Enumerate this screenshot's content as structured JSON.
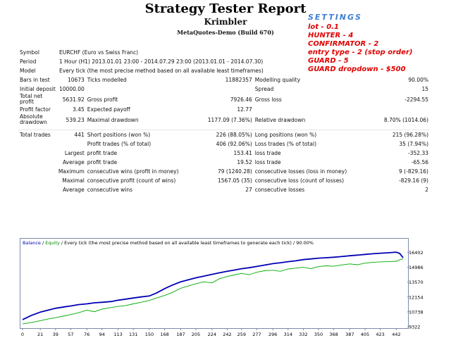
{
  "header": {
    "title": "Strategy Tester Report",
    "subtitle": "Krimbler",
    "company": "MetaQuotes-Demo (Build 670)"
  },
  "settings": {
    "heading": "SETTINGS",
    "lines": [
      "lot - 0.1",
      "HUNTER - 4",
      "CONFIRMATOR - 2",
      "entry type - 2 (stop order)",
      "GUARD - 5",
      "GUARD dropdown - $500"
    ]
  },
  "report": {
    "symbol_label": "Symbol",
    "symbol_value": "EURCHF (Euro vs Swiss Franc)",
    "period_label": "Period",
    "period_value": "1 Hour (H1) 2013.01.01 23:00 - 2014.07.29 23:00 (2013.01.01 - 2014.07.30)",
    "model_label": "Model",
    "model_value": "Every tick (the most precise method based on all available least timeframes)",
    "bars_label": "Bars in test",
    "bars_value": "10673",
    "ticks_label": "Ticks modelled",
    "ticks_value": "11882357",
    "quality_label": "Modelling quality",
    "quality_value": "90.00%",
    "deposit_label": "Initial deposit",
    "deposit_value": "10000.00",
    "spread_label": "Spread",
    "spread_value": "15",
    "netprofit_label": "Total net profit",
    "netprofit_value": "5631.92",
    "grossprofit_label": "Gross profit",
    "grossprofit_value": "7926.46",
    "grossloss_label": "Gross loss",
    "grossloss_value": "-2294.55",
    "pf_label": "Profit factor",
    "pf_value": "3.45",
    "payoff_label": "Expected payoff",
    "payoff_value": "12.77",
    "absdd_label": "Absolute drawdown",
    "absdd_value": "539.23",
    "maxdd_label": "Maximal drawdown",
    "maxdd_value": "1177.09 (7.36%)",
    "reldd_label": "Relative drawdown",
    "reldd_value": "8.70% (1014.06)",
    "trades_label": "Total trades",
    "trades_value": "441",
    "short_label": "Short positions (won %)",
    "short_value": "226 (88.05%)",
    "long_label": "Long positions (won %)",
    "long_value": "215 (96.28%)",
    "ptrades_label": "Profit trades (% of total)",
    "ptrades_value": "406 (92.06%)",
    "ltrades_label": "Loss trades (% of total)",
    "ltrades_value": "35 (7.94%)",
    "largest_label": "Largest",
    "largest_profit_label": "profit trade",
    "largest_profit_value": "153.41",
    "largest_loss_label": "loss trade",
    "largest_loss_value": "-352.33",
    "average_label": "Average",
    "average_profit_label": "profit trade",
    "average_profit_value": "19.52",
    "average_loss_label": "loss trade",
    "average_loss_value": "-65.56",
    "maximum_label": "Maximum",
    "max_wins_label": "consecutive wins (profit in money)",
    "max_wins_value": "79 (1240.28)",
    "max_losses_label": "consecutive losses (loss in money)",
    "max_losses_value": "9 (-829.16)",
    "maximal_label": "Maximal",
    "maximal_profit_label": "consecutive profit (count of wins)",
    "maximal_profit_value": "1567.05 (35)",
    "maximal_loss_label": "consecutive loss (count of losses)",
    "maximal_loss_value": "-829.16 (9)",
    "average2_label": "Average",
    "avg_wins_label": "consecutive wins",
    "avg_wins_value": "27",
    "avg_losses_label": "consecutive losses",
    "avg_losses_value": "2"
  },
  "chart_data": {
    "type": "line",
    "legend": {
      "balance": "Balance",
      "sep": " / ",
      "equity": "Equity",
      "rest": " / Every tick (the most precise method based on all available least timeframes to generate each tick) / 90.00%"
    },
    "xlim": [
      0,
      450
    ],
    "ylim": [
      9322,
      17100
    ],
    "x_ticks": [
      0,
      21,
      39,
      57,
      76,
      94,
      113,
      131,
      150,
      168,
      187,
      205,
      224,
      242,
      259,
      277,
      296,
      314,
      332,
      350,
      368,
      387,
      405,
      423,
      442
    ],
    "y_ticks": [
      16402,
      14986,
      13570,
      12154,
      10738,
      9322
    ],
    "series": [
      {
        "name": "Balance",
        "color": "#0000b4",
        "x": [
          0,
          10,
          21,
          30,
          39,
          50,
          57,
          66,
          76,
          85,
          94,
          105,
          113,
          122,
          131,
          140,
          150,
          158,
          168,
          176,
          187,
          196,
          205,
          214,
          224,
          233,
          242,
          250,
          259,
          268,
          277,
          286,
          296,
          305,
          314,
          323,
          332,
          341,
          350,
          359,
          368,
          377,
          387,
          396,
          405,
          414,
          423,
          432,
          442,
          446,
          450
        ],
        "y": [
          10000,
          10380,
          10720,
          10900,
          11080,
          11220,
          11300,
          11430,
          11500,
          11600,
          11650,
          11720,
          11850,
          11950,
          12060,
          12160,
          12250,
          12520,
          12950,
          13250,
          13600,
          13790,
          13980,
          14130,
          14310,
          14460,
          14600,
          14710,
          14850,
          14940,
          15060,
          15190,
          15330,
          15420,
          15520,
          15600,
          15710,
          15780,
          15850,
          15890,
          15940,
          16000,
          16080,
          16140,
          16210,
          16270,
          16320,
          16360,
          16420,
          16300,
          15900
        ]
      },
      {
        "name": "Equity",
        "color": "#00aa00",
        "x": [
          0,
          10,
          21,
          30,
          39,
          50,
          57,
          66,
          76,
          85,
          94,
          105,
          113,
          122,
          131,
          140,
          150,
          158,
          168,
          176,
          187,
          196,
          205,
          214,
          224,
          233,
          242,
          250,
          259,
          268,
          277,
          286,
          296,
          305,
          314,
          323,
          332,
          341,
          350,
          359,
          368,
          377,
          387,
          396,
          405,
          414,
          423,
          432,
          442,
          446,
          450
        ],
        "y": [
          9600,
          9720,
          9900,
          10050,
          10180,
          10360,
          10480,
          10650,
          10900,
          10760,
          11000,
          11150,
          11250,
          11340,
          11500,
          11650,
          11820,
          12050,
          12300,
          12550,
          12980,
          13200,
          13420,
          13600,
          13500,
          13900,
          14100,
          14250,
          14400,
          14280,
          14520,
          14650,
          14700,
          14600,
          14820,
          14900,
          14980,
          14850,
          15050,
          15120,
          15080,
          15200,
          15300,
          15220,
          15380,
          15450,
          15500,
          15520,
          15560,
          15700,
          15800
        ]
      }
    ]
  }
}
